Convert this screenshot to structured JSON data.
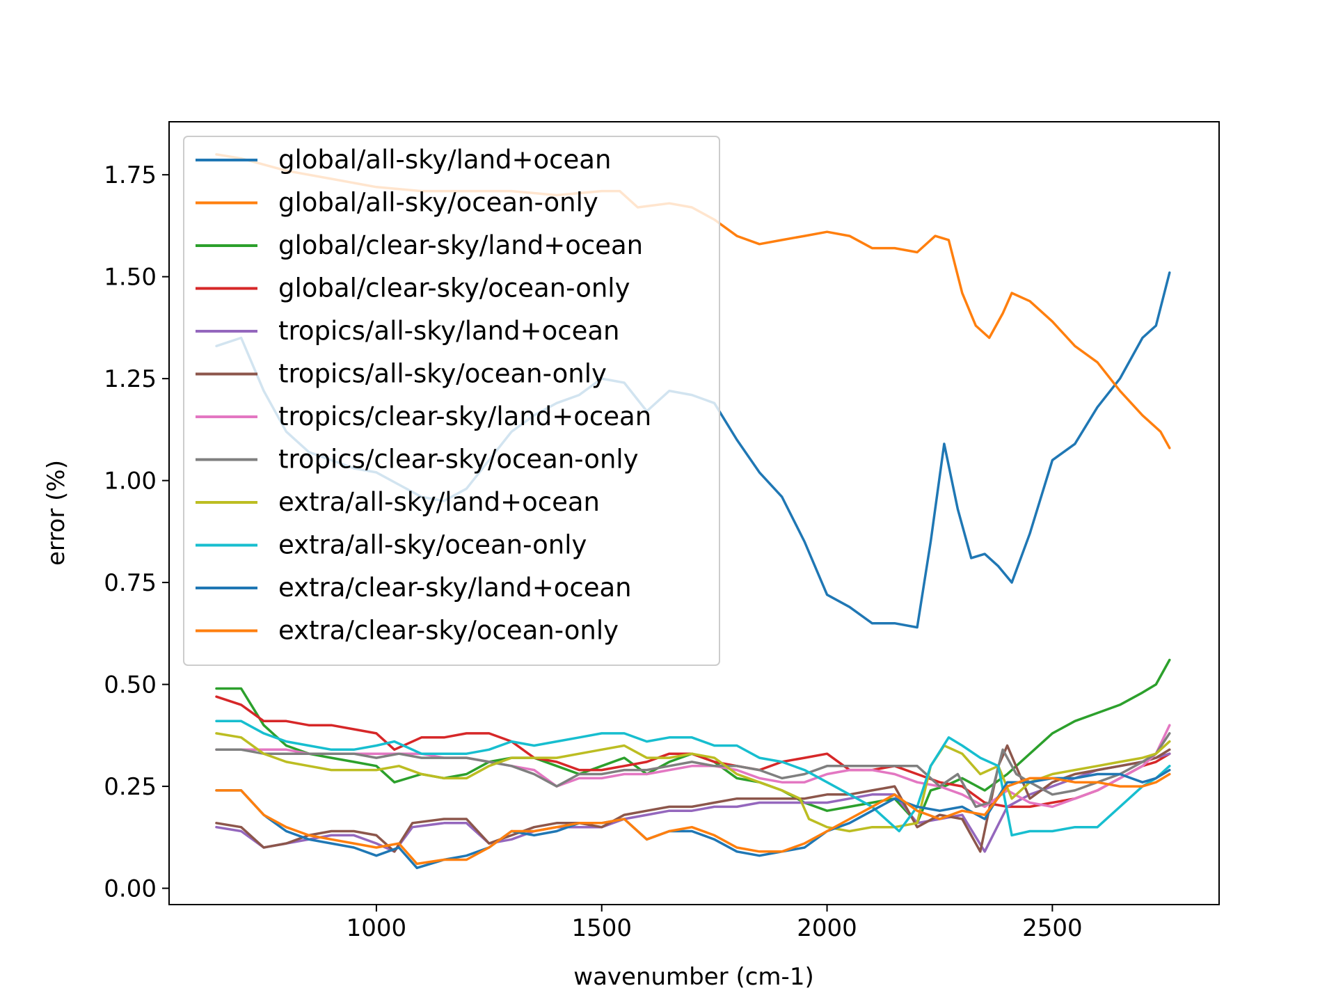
{
  "chart_data": {
    "type": "line",
    "title": "",
    "xlabel": "wavenumber (cm-1)",
    "ylabel": "error (%)",
    "xlim": [
      540,
      2870
    ],
    "ylim": [
      -0.04,
      1.88
    ],
    "xticks": [
      1000,
      1500,
      2000,
      2500
    ],
    "yticks": [
      0.0,
      0.25,
      0.5,
      0.75,
      1.0,
      1.25,
      1.5,
      1.75
    ],
    "xtick_labels": [
      "1000",
      "1500",
      "2000",
      "2500"
    ],
    "ytick_labels": [
      "0.00",
      "0.25",
      "0.50",
      "0.75",
      "1.00",
      "1.25",
      "1.50",
      "1.75"
    ],
    "grid": false,
    "legend_position": "upper-left",
    "series": [
      {
        "name": "global/all-sky/land+ocean",
        "color": "#1f77b4",
        "x": [
          645,
          700,
          750,
          800,
          850,
          900,
          950,
          1000,
          1050,
          1100,
          1150,
          1200,
          1250,
          1300,
          1350,
          1400,
          1450,
          1500,
          1550,
          1600,
          1650,
          1700,
          1750,
          1800,
          1850,
          1900,
          1950,
          2000,
          2050,
          2100,
          2150,
          2200,
          2230,
          2260,
          2290,
          2320,
          2350,
          2380,
          2410,
          2450,
          2500,
          2550,
          2600,
          2650,
          2700,
          2730,
          2760
        ],
        "y": [
          1.33,
          1.35,
          1.22,
          1.12,
          1.07,
          1.05,
          1.03,
          1.02,
          0.99,
          0.96,
          0.95,
          0.98,
          1.05,
          1.12,
          1.16,
          1.19,
          1.21,
          1.25,
          1.24,
          1.17,
          1.22,
          1.21,
          1.19,
          1.1,
          1.02,
          0.96,
          0.85,
          0.72,
          0.69,
          0.65,
          0.65,
          0.64,
          0.85,
          1.09,
          0.93,
          0.81,
          0.82,
          0.79,
          0.75,
          0.87,
          1.05,
          1.09,
          1.18,
          1.25,
          1.35,
          1.38,
          1.51
        ]
      },
      {
        "name": "global/all-sky/ocean-only",
        "color": "#ff7f0e",
        "x": [
          645,
          700,
          800,
          900,
          1000,
          1100,
          1200,
          1300,
          1400,
          1500,
          1540,
          1580,
          1650,
          1700,
          1750,
          1800,
          1850,
          1900,
          1950,
          2000,
          2050,
          2100,
          2150,
          2200,
          2240,
          2270,
          2300,
          2330,
          2360,
          2390,
          2410,
          2450,
          2500,
          2550,
          2600,
          2650,
          2700,
          2740,
          2760
        ],
        "y": [
          1.8,
          1.79,
          1.76,
          1.74,
          1.72,
          1.71,
          1.71,
          1.71,
          1.7,
          1.71,
          1.71,
          1.67,
          1.68,
          1.67,
          1.64,
          1.6,
          1.58,
          1.59,
          1.6,
          1.61,
          1.6,
          1.57,
          1.57,
          1.56,
          1.6,
          1.59,
          1.46,
          1.38,
          1.35,
          1.41,
          1.46,
          1.44,
          1.39,
          1.33,
          1.29,
          1.22,
          1.16,
          1.12,
          1.08
        ]
      },
      {
        "name": "global/clear-sky/land+ocean",
        "color": "#2ca02c",
        "x": [
          645,
          700,
          750,
          800,
          850,
          900,
          950,
          1000,
          1040,
          1100,
          1150,
          1200,
          1250,
          1300,
          1350,
          1400,
          1450,
          1500,
          1550,
          1600,
          1650,
          1700,
          1750,
          1800,
          1850,
          1900,
          1950,
          2000,
          2050,
          2100,
          2150,
          2200,
          2230,
          2260,
          2300,
          2350,
          2400,
          2450,
          2500,
          2550,
          2600,
          2650,
          2700,
          2730,
          2760
        ],
        "y": [
          0.49,
          0.49,
          0.4,
          0.35,
          0.33,
          0.32,
          0.31,
          0.3,
          0.26,
          0.28,
          0.27,
          0.28,
          0.31,
          0.32,
          0.32,
          0.3,
          0.28,
          0.3,
          0.32,
          0.28,
          0.31,
          0.33,
          0.31,
          0.27,
          0.26,
          0.24,
          0.21,
          0.19,
          0.2,
          0.21,
          0.22,
          0.16,
          0.24,
          0.25,
          0.27,
          0.24,
          0.28,
          0.33,
          0.38,
          0.41,
          0.43,
          0.45,
          0.48,
          0.5,
          0.56
        ]
      },
      {
        "name": "global/clear-sky/ocean-only",
        "color": "#d62728",
        "x": [
          645,
          700,
          750,
          800,
          850,
          900,
          950,
          1000,
          1040,
          1100,
          1150,
          1200,
          1250,
          1300,
          1350,
          1400,
          1450,
          1500,
          1550,
          1600,
          1650,
          1700,
          1750,
          1800,
          1850,
          1900,
          1950,
          2000,
          2050,
          2100,
          2150,
          2200,
          2250,
          2300,
          2350,
          2400,
          2450,
          2500,
          2550,
          2600,
          2650,
          2700,
          2730,
          2760
        ],
        "y": [
          0.47,
          0.45,
          0.41,
          0.41,
          0.4,
          0.4,
          0.39,
          0.38,
          0.34,
          0.37,
          0.37,
          0.38,
          0.38,
          0.36,
          0.32,
          0.31,
          0.29,
          0.29,
          0.3,
          0.31,
          0.33,
          0.33,
          0.31,
          0.3,
          0.29,
          0.31,
          0.32,
          0.33,
          0.29,
          0.29,
          0.3,
          0.28,
          0.26,
          0.25,
          0.21,
          0.2,
          0.2,
          0.21,
          0.22,
          0.24,
          0.27,
          0.3,
          0.31,
          0.33
        ]
      },
      {
        "name": "tropics/all-sky/land+ocean",
        "color": "#9467bd",
        "x": [
          645,
          700,
          750,
          800,
          850,
          900,
          950,
          1000,
          1040,
          1080,
          1150,
          1200,
          1250,
          1300,
          1350,
          1400,
          1450,
          1500,
          1550,
          1600,
          1650,
          1700,
          1750,
          1800,
          1850,
          1900,
          1950,
          2000,
          2050,
          2100,
          2150,
          2200,
          2250,
          2300,
          2350,
          2400,
          2450,
          2500,
          2550,
          2600,
          2650,
          2700,
          2730,
          2760
        ],
        "y": [
          0.15,
          0.14,
          0.1,
          0.11,
          0.12,
          0.13,
          0.13,
          0.11,
          0.09,
          0.15,
          0.16,
          0.16,
          0.11,
          0.12,
          0.14,
          0.15,
          0.15,
          0.15,
          0.17,
          0.18,
          0.19,
          0.19,
          0.2,
          0.2,
          0.21,
          0.21,
          0.21,
          0.21,
          0.22,
          0.23,
          0.23,
          0.16,
          0.17,
          0.18,
          0.09,
          0.2,
          0.23,
          0.25,
          0.27,
          0.29,
          0.3,
          0.31,
          0.32,
          0.33
        ]
      },
      {
        "name": "tropics/all-sky/ocean-only",
        "color": "#8c564b",
        "x": [
          645,
          700,
          750,
          800,
          850,
          900,
          950,
          1000,
          1040,
          1080,
          1150,
          1200,
          1250,
          1300,
          1350,
          1400,
          1450,
          1500,
          1550,
          1600,
          1650,
          1700,
          1750,
          1800,
          1850,
          1900,
          1950,
          2000,
          2050,
          2100,
          2150,
          2200,
          2250,
          2300,
          2340,
          2380,
          2400,
          2450,
          2500,
          2550,
          2600,
          2650,
          2700,
          2730,
          2760
        ],
        "y": [
          0.16,
          0.15,
          0.1,
          0.11,
          0.13,
          0.14,
          0.14,
          0.13,
          0.09,
          0.16,
          0.17,
          0.17,
          0.11,
          0.13,
          0.15,
          0.16,
          0.16,
          0.15,
          0.18,
          0.19,
          0.2,
          0.2,
          0.21,
          0.22,
          0.22,
          0.22,
          0.22,
          0.23,
          0.23,
          0.24,
          0.25,
          0.15,
          0.18,
          0.17,
          0.09,
          0.3,
          0.35,
          0.22,
          0.26,
          0.28,
          0.29,
          0.3,
          0.31,
          0.32,
          0.34
        ]
      },
      {
        "name": "tropics/clear-sky/land+ocean",
        "color": "#e377c2",
        "x": [
          645,
          700,
          750,
          800,
          850,
          900,
          950,
          1000,
          1050,
          1100,
          1150,
          1200,
          1250,
          1300,
          1350,
          1400,
          1450,
          1500,
          1550,
          1600,
          1650,
          1700,
          1750,
          1800,
          1850,
          1900,
          1950,
          2000,
          2050,
          2100,
          2150,
          2200,
          2250,
          2300,
          2350,
          2400,
          2450,
          2500,
          2550,
          2600,
          2650,
          2700,
          2730,
          2760
        ],
        "y": [
          0.34,
          0.34,
          0.34,
          0.34,
          0.33,
          0.33,
          0.33,
          0.33,
          0.33,
          0.33,
          0.32,
          0.32,
          0.31,
          0.3,
          0.29,
          0.25,
          0.27,
          0.27,
          0.28,
          0.28,
          0.29,
          0.3,
          0.3,
          0.29,
          0.27,
          0.26,
          0.26,
          0.28,
          0.29,
          0.29,
          0.28,
          0.26,
          0.25,
          0.23,
          0.2,
          0.24,
          0.21,
          0.2,
          0.22,
          0.24,
          0.27,
          0.3,
          0.33,
          0.4
        ]
      },
      {
        "name": "tropics/clear-sky/ocean-only",
        "color": "#7f7f7f",
        "x": [
          645,
          700,
          750,
          800,
          850,
          900,
          950,
          1000,
          1050,
          1100,
          1150,
          1200,
          1250,
          1300,
          1350,
          1400,
          1450,
          1500,
          1550,
          1600,
          1650,
          1700,
          1750,
          1800,
          1850,
          1900,
          1950,
          2000,
          2050,
          2100,
          2150,
          2200,
          2250,
          2290,
          2330,
          2360,
          2390,
          2420,
          2450,
          2500,
          2550,
          2600,
          2650,
          2700,
          2730,
          2760
        ],
        "y": [
          0.34,
          0.34,
          0.33,
          0.33,
          0.33,
          0.33,
          0.33,
          0.32,
          0.33,
          0.32,
          0.32,
          0.32,
          0.31,
          0.3,
          0.28,
          0.25,
          0.28,
          0.28,
          0.29,
          0.29,
          0.3,
          0.31,
          0.3,
          0.3,
          0.29,
          0.27,
          0.28,
          0.3,
          0.3,
          0.3,
          0.3,
          0.3,
          0.25,
          0.28,
          0.2,
          0.21,
          0.34,
          0.28,
          0.26,
          0.23,
          0.24,
          0.26,
          0.28,
          0.31,
          0.33,
          0.38
        ]
      },
      {
        "name": "extra/all-sky/land+ocean",
        "color": "#bcbd22",
        "x": [
          645,
          700,
          750,
          800,
          850,
          900,
          950,
          1000,
          1050,
          1100,
          1150,
          1200,
          1250,
          1300,
          1350,
          1400,
          1450,
          1500,
          1550,
          1600,
          1650,
          1700,
          1750,
          1800,
          1850,
          1900,
          1940,
          1960,
          2000,
          2050,
          2100,
          2150,
          2200,
          2230,
          2260,
          2300,
          2340,
          2380,
          2410,
          2450,
          2500,
          2550,
          2600,
          2650,
          2700,
          2730,
          2760
        ],
        "y": [
          0.38,
          0.37,
          0.33,
          0.31,
          0.3,
          0.29,
          0.29,
          0.29,
          0.3,
          0.28,
          0.27,
          0.27,
          0.3,
          0.32,
          0.32,
          0.32,
          0.33,
          0.34,
          0.35,
          0.32,
          0.32,
          0.33,
          0.32,
          0.28,
          0.26,
          0.24,
          0.22,
          0.17,
          0.15,
          0.14,
          0.15,
          0.15,
          0.16,
          0.3,
          0.35,
          0.33,
          0.28,
          0.3,
          0.22,
          0.26,
          0.28,
          0.29,
          0.3,
          0.31,
          0.32,
          0.33,
          0.36
        ]
      },
      {
        "name": "extra/all-sky/ocean-only",
        "color": "#17becf",
        "x": [
          645,
          700,
          750,
          800,
          850,
          900,
          950,
          1000,
          1040,
          1100,
          1150,
          1200,
          1250,
          1300,
          1350,
          1400,
          1450,
          1500,
          1550,
          1600,
          1650,
          1700,
          1750,
          1800,
          1850,
          1900,
          1950,
          2000,
          2050,
          2100,
          2160,
          2200,
          2230,
          2270,
          2300,
          2340,
          2380,
          2410,
          2450,
          2500,
          2550,
          2600,
          2650,
          2700,
          2730,
          2760
        ],
        "y": [
          0.41,
          0.41,
          0.38,
          0.36,
          0.35,
          0.34,
          0.34,
          0.35,
          0.36,
          0.33,
          0.33,
          0.33,
          0.34,
          0.36,
          0.35,
          0.36,
          0.37,
          0.38,
          0.38,
          0.36,
          0.37,
          0.37,
          0.35,
          0.35,
          0.32,
          0.31,
          0.29,
          0.26,
          0.23,
          0.2,
          0.14,
          0.2,
          0.3,
          0.37,
          0.35,
          0.32,
          0.3,
          0.13,
          0.14,
          0.14,
          0.15,
          0.15,
          0.2,
          0.25,
          0.27,
          0.3
        ]
      },
      {
        "name": "extra/clear-sky/land+ocean",
        "color": "#1f77b4",
        "x": [
          645,
          700,
          750,
          800,
          850,
          900,
          950,
          1000,
          1050,
          1090,
          1150,
          1200,
          1250,
          1300,
          1350,
          1400,
          1450,
          1500,
          1550,
          1600,
          1650,
          1700,
          1750,
          1800,
          1850,
          1900,
          1950,
          2000,
          2050,
          2100,
          2150,
          2200,
          2250,
          2300,
          2350,
          2400,
          2450,
          2500,
          2550,
          2600,
          2650,
          2700,
          2730,
          2760
        ],
        "y": [
          0.24,
          0.24,
          0.18,
          0.14,
          0.12,
          0.11,
          0.1,
          0.08,
          0.1,
          0.05,
          0.07,
          0.08,
          0.1,
          0.14,
          0.13,
          0.14,
          0.16,
          0.16,
          0.17,
          0.12,
          0.14,
          0.14,
          0.12,
          0.09,
          0.08,
          0.09,
          0.1,
          0.14,
          0.16,
          0.19,
          0.22,
          0.2,
          0.19,
          0.2,
          0.17,
          0.26,
          0.26,
          0.27,
          0.27,
          0.28,
          0.28,
          0.26,
          0.27,
          0.29
        ]
      },
      {
        "name": "extra/clear-sky/ocean-only",
        "color": "#ff7f0e",
        "x": [
          645,
          700,
          750,
          800,
          850,
          900,
          950,
          1000,
          1050,
          1090,
          1150,
          1200,
          1250,
          1300,
          1350,
          1400,
          1450,
          1500,
          1550,
          1600,
          1650,
          1700,
          1750,
          1800,
          1850,
          1900,
          1950,
          2000,
          2050,
          2100,
          2150,
          2200,
          2250,
          2300,
          2350,
          2400,
          2450,
          2500,
          2550,
          2600,
          2650,
          2700,
          2730,
          2760
        ],
        "y": [
          0.24,
          0.24,
          0.18,
          0.15,
          0.13,
          0.12,
          0.11,
          0.1,
          0.11,
          0.06,
          0.07,
          0.07,
          0.1,
          0.14,
          0.14,
          0.15,
          0.16,
          0.16,
          0.17,
          0.12,
          0.14,
          0.15,
          0.13,
          0.1,
          0.09,
          0.09,
          0.11,
          0.14,
          0.17,
          0.2,
          0.23,
          0.19,
          0.17,
          0.19,
          0.18,
          0.25,
          0.27,
          0.27,
          0.26,
          0.26,
          0.25,
          0.25,
          0.26,
          0.28
        ]
      }
    ]
  }
}
